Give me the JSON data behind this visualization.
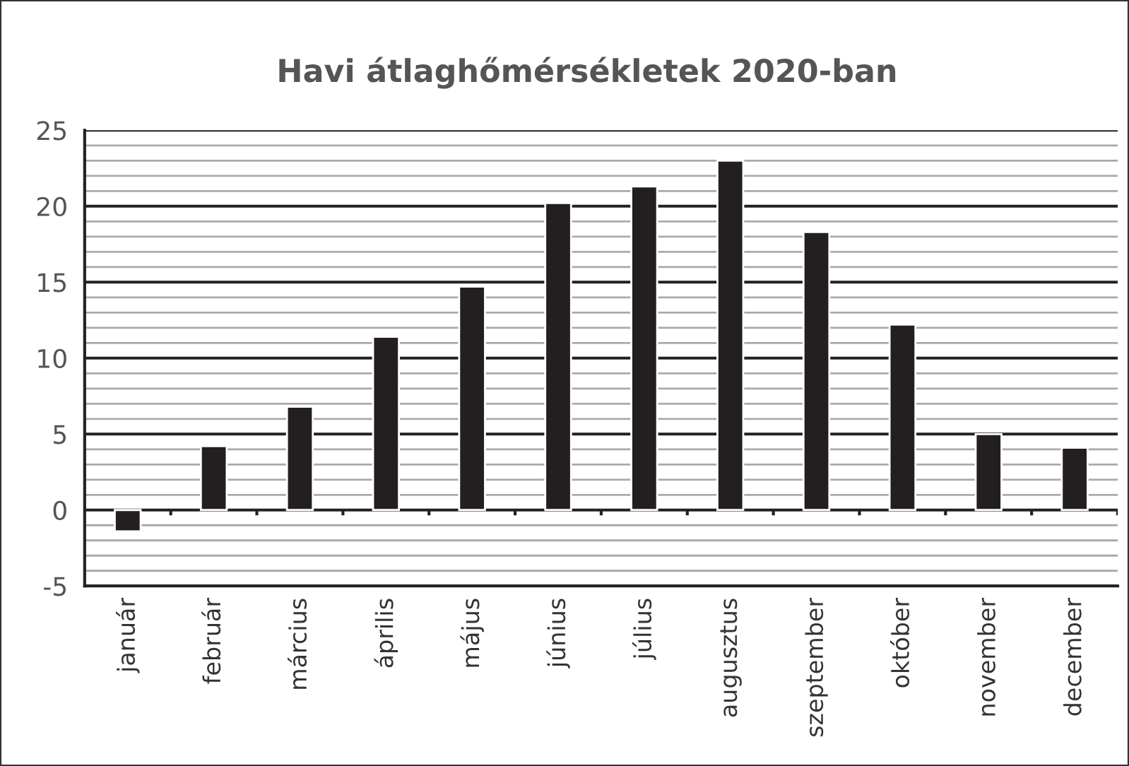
{
  "chart_data": {
    "type": "bar",
    "title": "Havi átlaghőmérsékletek 2020-ban",
    "categories": [
      "január",
      "február",
      "március",
      "április",
      "május",
      "június",
      "július",
      "augusztus",
      "szeptember",
      "október",
      "november",
      "december"
    ],
    "values": [
      -1.4,
      4.2,
      6.8,
      11.4,
      14.7,
      20.2,
      21.3,
      23.0,
      18.3,
      12.2,
      5.0,
      4.1
    ],
    "color": "#231f20",
    "ylim": [
      -5,
      25
    ],
    "yticks": [
      -5,
      0,
      5,
      10,
      15,
      20,
      25
    ],
    "grid": "y"
  }
}
